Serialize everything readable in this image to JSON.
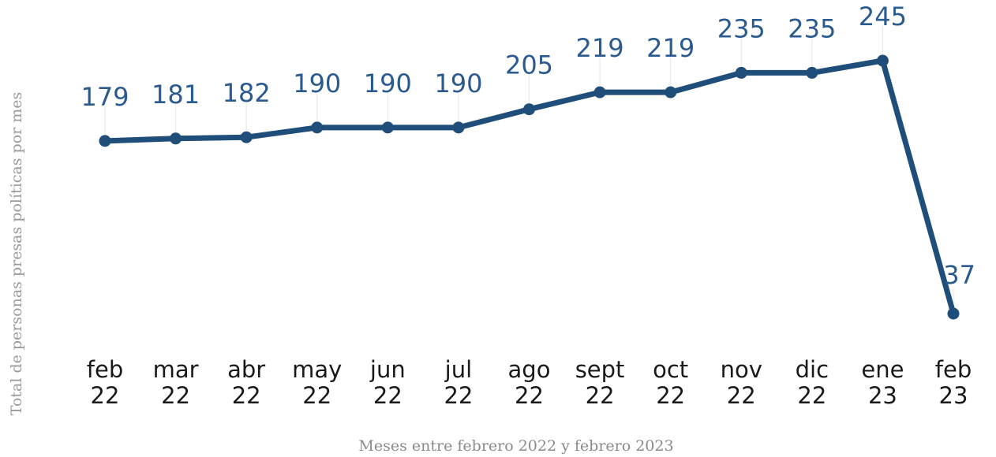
{
  "chart_data": {
    "type": "line",
    "title": "",
    "xlabel": "Meses entre febrero 2022 y febrero 2023",
    "ylabel": "Total de personas presas políticas por mes",
    "categories": [
      [
        "feb",
        "22"
      ],
      [
        "mar",
        "22"
      ],
      [
        "abr",
        "22"
      ],
      [
        "may",
        "22"
      ],
      [
        "jun",
        "22"
      ],
      [
        "jul",
        "22"
      ],
      [
        "ago",
        "22"
      ],
      [
        "sept",
        "22"
      ],
      [
        "oct",
        "22"
      ],
      [
        "nov",
        "22"
      ],
      [
        "dic",
        "22"
      ],
      [
        "ene",
        "23"
      ],
      [
        "feb",
        "23"
      ]
    ],
    "values": [
      179,
      181,
      182,
      190,
      190,
      190,
      205,
      219,
      219,
      235,
      235,
      245,
      37
    ],
    "ylim": [
      0,
      260
    ],
    "grid": false,
    "legend": "none",
    "color": "#1f4e7a",
    "label_color": "#2a5a8e"
  }
}
